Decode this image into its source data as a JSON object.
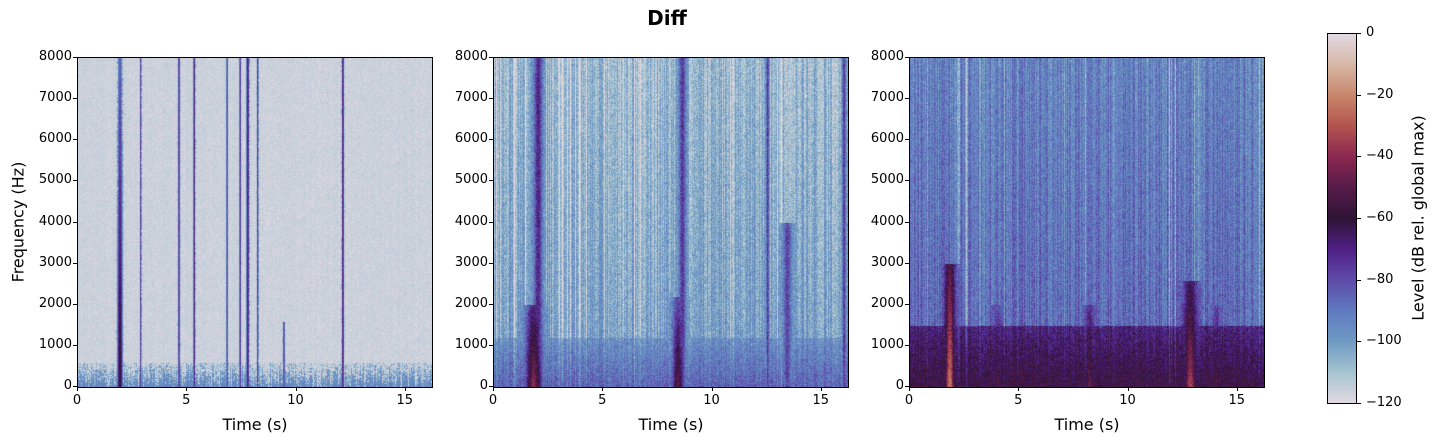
{
  "figure": {
    "title": "Diff"
  },
  "chart_data": {
    "type": "heatmap",
    "title": "Diff",
    "subtype": "spectrogram",
    "shared": {
      "xlabel": "Time (s)",
      "ylabel": "Frequency (Hz)",
      "xlim": [
        0,
        16.2
      ],
      "ylim": [
        0,
        8000
      ],
      "xticks": [
        0,
        5,
        10,
        15
      ],
      "xtick_labels": [
        "0",
        "5",
        "10",
        "15"
      ],
      "yticks": [
        0,
        1000,
        2000,
        3000,
        4000,
        5000,
        6000,
        7000,
        8000
      ],
      "ytick_labels": [
        "0",
        "1000",
        "2000",
        "3000",
        "4000",
        "5000",
        "6000",
        "7000",
        "8000"
      ]
    },
    "colorbar": {
      "label": "Level (dB rel. global max)",
      "range": [
        -120,
        0
      ],
      "ticks": [
        0,
        -20,
        -40,
        -60,
        -80,
        -100,
        -120
      ],
      "tick_labels": [
        "0",
        "−20",
        "−40",
        "−60",
        "−80",
        "−100",
        "−120"
      ],
      "colormap": "twilight-like",
      "stops": [
        {
          "v": -120,
          "color": "#e2d9e2"
        },
        {
          "v": -110,
          "color": "#a6c4d0"
        },
        {
          "v": -100,
          "color": "#6e9ac3"
        },
        {
          "v": -90,
          "color": "#5f7ac0"
        },
        {
          "v": -80,
          "color": "#5e4ba8"
        },
        {
          "v": -70,
          "color": "#4f1f85"
        },
        {
          "v": -60,
          "color": "#2f1436"
        },
        {
          "v": -50,
          "color": "#561b49"
        },
        {
          "v": -40,
          "color": "#8b2851"
        },
        {
          "v": -30,
          "color": "#b3534f"
        },
        {
          "v": -20,
          "color": "#c8866a"
        },
        {
          "v": -10,
          "color": "#d7b8a6"
        },
        {
          "v": 0,
          "color": "#e2d9e2"
        }
      ]
    },
    "panels": [
      {
        "id": "left",
        "description": "Mostly near -120 dB background with sparse narrow vertical dark-purple streaks; strong harmonic streak near 1.9 s reaching ~-50 dB below 3 kHz",
        "base_db": -117,
        "low_band_db": -95,
        "low_band_hz": 600,
        "events": [
          {
            "t": 1.9,
            "w": 0.18,
            "db": -55,
            "fmax": 8000,
            "lowboost": 0.4
          },
          {
            "t": 2.85,
            "w": 0.05,
            "db": -72,
            "fmax": 8000,
            "lowboost": 0
          },
          {
            "t": 4.6,
            "w": 0.08,
            "db": -75,
            "fmax": 8000,
            "lowboost": 0
          },
          {
            "t": 5.3,
            "w": 0.07,
            "db": -70,
            "fmax": 8000,
            "lowboost": 0
          },
          {
            "t": 6.8,
            "w": 0.05,
            "db": -70,
            "fmax": 8000,
            "lowboost": 0
          },
          {
            "t": 7.4,
            "w": 0.06,
            "db": -72,
            "fmax": 8000,
            "lowboost": 0
          },
          {
            "t": 7.75,
            "w": 0.1,
            "db": -68,
            "fmax": 8000,
            "lowboost": 0
          },
          {
            "t": 8.2,
            "w": 0.06,
            "db": -75,
            "fmax": 8000,
            "lowboost": 0
          },
          {
            "t": 9.4,
            "w": 0.08,
            "db": -78,
            "fmax": 1600,
            "lowboost": 0
          },
          {
            "t": 12.1,
            "w": 0.08,
            "db": -68,
            "fmax": 8000,
            "lowboost": 0
          }
        ]
      },
      {
        "id": "middle",
        "description": "Blue/light-blue textured background (~-100 dB) with dark purple columns; orange-red hot spots at ~1.9 s and ~8.5 s below 2 kHz",
        "base_db": -100,
        "low_band_db": -85,
        "low_band_hz": 1200,
        "events": [
          {
            "t": 1.8,
            "w": 0.5,
            "db": -40,
            "fmax": 2000,
            "lowboost": 1
          },
          {
            "t": 2.0,
            "w": 0.25,
            "db": -70,
            "fmax": 8000,
            "lowboost": 0
          },
          {
            "t": 8.4,
            "w": 0.35,
            "db": -50,
            "fmax": 2200,
            "lowboost": 1
          },
          {
            "t": 8.6,
            "w": 0.2,
            "db": -75,
            "fmax": 8000,
            "lowboost": 0
          },
          {
            "t": 12.5,
            "w": 0.08,
            "db": -75,
            "fmax": 8000,
            "lowboost": 0
          },
          {
            "t": 13.4,
            "w": 0.25,
            "db": -78,
            "fmax": 4000,
            "lowboost": 0
          },
          {
            "t": 16.0,
            "w": 0.1,
            "db": -75,
            "fmax": 8000,
            "lowboost": 0
          }
        ]
      },
      {
        "id": "right",
        "description": "Purple-dominant (~-80 dB) with dark columns; warm orange-red energy below ~1.5 kHz, strongest at ~1.8 s and ~12.8 s",
        "base_db": -85,
        "low_band_db": -58,
        "low_band_hz": 1500,
        "events": [
          {
            "t": 1.8,
            "w": 0.3,
            "db": -22,
            "fmax": 3000,
            "lowboost": 1
          },
          {
            "t": 4.0,
            "w": 0.2,
            "db": -50,
            "fmax": 2000,
            "lowboost": 1
          },
          {
            "t": 8.2,
            "w": 0.25,
            "db": -45,
            "fmax": 2000,
            "lowboost": 1
          },
          {
            "t": 12.8,
            "w": 0.4,
            "db": -35,
            "fmax": 2600,
            "lowboost": 1
          },
          {
            "t": 14.0,
            "w": 0.2,
            "db": -50,
            "fmax": 2000,
            "lowboost": 1
          }
        ]
      }
    ]
  }
}
